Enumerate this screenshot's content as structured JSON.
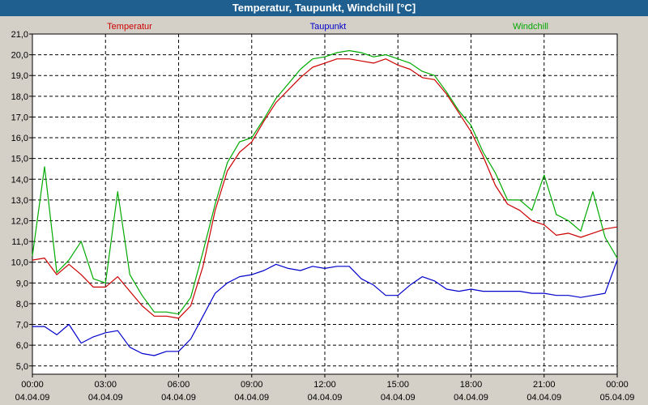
{
  "window": {
    "title": "Temperatur, Taupunkt, Windchill [°C]"
  },
  "chart_data": {
    "type": "line",
    "title": "Temperatur, Taupunkt, Windchill [°C]",
    "xlabel": "",
    "ylabel": "",
    "ylim": [
      4.6,
      21.0
    ],
    "grid": true,
    "legend_position": "top",
    "x_ticks": [
      {
        "time": "00:00",
        "date": "04.04.09"
      },
      {
        "time": "03:00",
        "date": "04.04.09"
      },
      {
        "time": "06:00",
        "date": "04.04.09"
      },
      {
        "time": "09:00",
        "date": "04.04.09"
      },
      {
        "time": "12:00",
        "date": "04.04.09"
      },
      {
        "time": "15:00",
        "date": "04.04.09"
      },
      {
        "time": "18:00",
        "date": "04.04.09"
      },
      {
        "time": "21:00",
        "date": "04.04.09"
      },
      {
        "time": "00:00",
        "date": "05.04.09"
      }
    ],
    "y_ticks": [
      "5,0",
      "6,0",
      "7,0",
      "8,0",
      "9,0",
      "10,0",
      "11,0",
      "12,0",
      "13,0",
      "14,0",
      "15,0",
      "16,0",
      "17,0",
      "18,0",
      "19,0",
      "20,0",
      "21,0"
    ],
    "series": [
      {
        "name": "Temperatur",
        "color": "#cc0000",
        "x": [
          0,
          0.5,
          1,
          1.5,
          2,
          2.5,
          3,
          3.5,
          4,
          4.5,
          5,
          5.5,
          6,
          6.5,
          7,
          7.5,
          8,
          8.5,
          9,
          9.5,
          10,
          10.5,
          11,
          11.5,
          12,
          12.5,
          13,
          13.5,
          14,
          14.5,
          15,
          15.5,
          16,
          16.5,
          17,
          17.5,
          18,
          18.5,
          19,
          19.5,
          20,
          20.5,
          21,
          21.5,
          22,
          22.5,
          23,
          23.5,
          24
        ],
        "y": [
          10.1,
          10.2,
          9.4,
          9.9,
          9.4,
          8.8,
          8.8,
          9.3,
          8.6,
          7.9,
          7.4,
          7.4,
          7.3,
          7.9,
          9.8,
          12.5,
          14.4,
          15.3,
          15.8,
          16.8,
          17.7,
          18.3,
          18.9,
          19.4,
          19.6,
          19.8,
          19.8,
          19.7,
          19.6,
          19.8,
          19.5,
          19.3,
          18.9,
          18.8,
          18.1,
          17.2,
          16.3,
          15.1,
          13.7,
          12.8,
          12.5,
          12.0,
          11.8,
          11.3,
          11.4,
          11.2,
          11.4,
          11.6,
          11.7
        ]
      },
      {
        "name": "Taupunkt",
        "color": "#0000cc",
        "x": [
          0,
          0.5,
          1,
          1.5,
          2,
          2.5,
          3,
          3.5,
          4,
          4.5,
          5,
          5.5,
          6,
          6.5,
          7,
          7.5,
          8,
          8.5,
          9,
          9.5,
          10,
          10.5,
          11,
          11.5,
          12,
          12.5,
          13,
          13.5,
          14,
          14.5,
          15,
          15.5,
          16,
          16.5,
          17,
          17.5,
          18,
          18.5,
          19,
          19.5,
          20,
          20.5,
          21,
          21.5,
          22,
          22.5,
          23,
          23.5,
          24
        ],
        "y": [
          6.9,
          6.9,
          6.5,
          7.0,
          6.1,
          6.4,
          6.6,
          6.7,
          5.9,
          5.6,
          5.5,
          5.7,
          5.7,
          6.3,
          7.4,
          8.5,
          9.0,
          9.3,
          9.4,
          9.6,
          9.9,
          9.7,
          9.6,
          9.8,
          9.7,
          9.8,
          9.8,
          9.2,
          8.9,
          8.4,
          8.4,
          8.9,
          9.3,
          9.1,
          8.7,
          8.6,
          8.7,
          8.6,
          8.6,
          8.6,
          8.6,
          8.5,
          8.5,
          8.4,
          8.4,
          8.3,
          8.4,
          8.5,
          10.1
        ]
      },
      {
        "name": "Windchill",
        "color": "#00aa00",
        "x": [
          0,
          0.5,
          1,
          1.5,
          2,
          2.5,
          3,
          3.5,
          4,
          4.5,
          5,
          5.5,
          6,
          6.5,
          7,
          7.5,
          8,
          8.5,
          9,
          9.5,
          10,
          10.5,
          11,
          11.5,
          12,
          12.5,
          13,
          13.5,
          14,
          14.5,
          15,
          15.5,
          16,
          16.5,
          17,
          17.5,
          18,
          18.5,
          19,
          19.5,
          20,
          20.5,
          21,
          21.5,
          22,
          22.5,
          23,
          23.5,
          24
        ],
        "y": [
          10.3,
          14.6,
          9.5,
          10.1,
          11.0,
          9.2,
          9.0,
          13.4,
          9.4,
          8.4,
          7.6,
          7.6,
          7.5,
          8.3,
          10.5,
          12.8,
          14.8,
          15.8,
          16.0,
          16.9,
          17.9,
          18.6,
          19.3,
          19.8,
          19.9,
          20.1,
          20.2,
          20.1,
          19.9,
          20.0,
          19.8,
          19.6,
          19.2,
          19.0,
          18.2,
          17.3,
          16.6,
          15.3,
          14.3,
          13.0,
          13.0,
          12.5,
          14.2,
          12.3,
          12.0,
          11.5,
          13.4,
          11.2,
          10.2
        ]
      }
    ]
  }
}
